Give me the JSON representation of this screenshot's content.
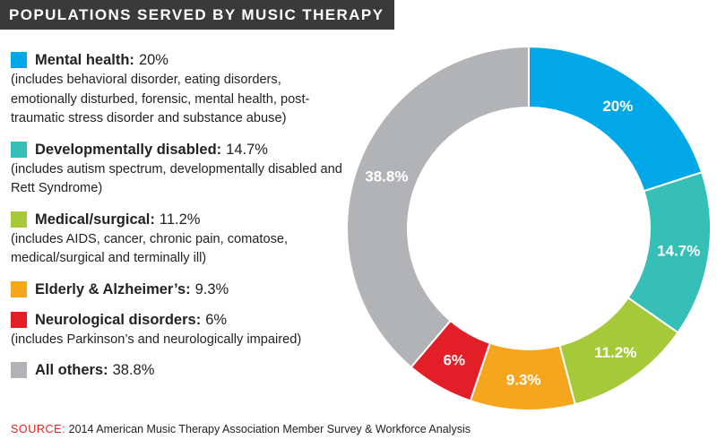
{
  "header": {
    "title": "POPULATIONS SERVED BY MUSIC THERAPY"
  },
  "legend": {
    "items": [
      {
        "label": "Mental health:",
        "value": "20%",
        "description": "(includes behavioral disorder, eating disorders, emotionally disturbed, forensic, mental health, post-traumatic stress disorder and substance abuse)",
        "color": "#00a8e8"
      },
      {
        "label": "Developmentally disabled:",
        "value": "14.7%",
        "description": "(includes autism spectrum, developmentally disabled and Rett Syndrome)",
        "color": "#35bfb6"
      },
      {
        "label": "Medical/surgical:",
        "value": "11.2%",
        "description": "(includes AIDS, cancer, chronic pain, comatose, medical/surgical and terminally ill)",
        "color": "#a6c93a"
      },
      {
        "label": "Elderly & Alzheimer’s:",
        "value": "9.3%",
        "description": "",
        "color": "#f6a61c"
      },
      {
        "label": "Neurological disorders:",
        "value": "6%",
        "description": "(includes Parkinson’s and neurologically impaired)",
        "color": "#e21f26"
      },
      {
        "label": "All others:",
        "value": "38.8%",
        "description": "",
        "color": "#b1b3b6"
      }
    ]
  },
  "source": {
    "label": "SOURCE:",
    "text": "2014 American Music Therapy Association Member Survey & Workforce Analysis"
  },
  "chart_data": {
    "type": "pie",
    "donut": true,
    "title": "POPULATIONS SERVED BY MUSIC THERAPY",
    "categories": [
      "Mental health",
      "Developmentally disabled",
      "Medical/surgical",
      "Elderly & Alzheimer’s",
      "Neurological disorders",
      "All others"
    ],
    "values": [
      20,
      14.7,
      11.2,
      9.3,
      6,
      38.8
    ],
    "labels": [
      "20%",
      "14.7%",
      "11.2%",
      "9.3%",
      "6%",
      "38.8%"
    ],
    "colors": [
      "#00a8e8",
      "#35bfb6",
      "#a6c93a",
      "#f6a61c",
      "#e21f26",
      "#b1b3b6"
    ],
    "legend": "left"
  }
}
